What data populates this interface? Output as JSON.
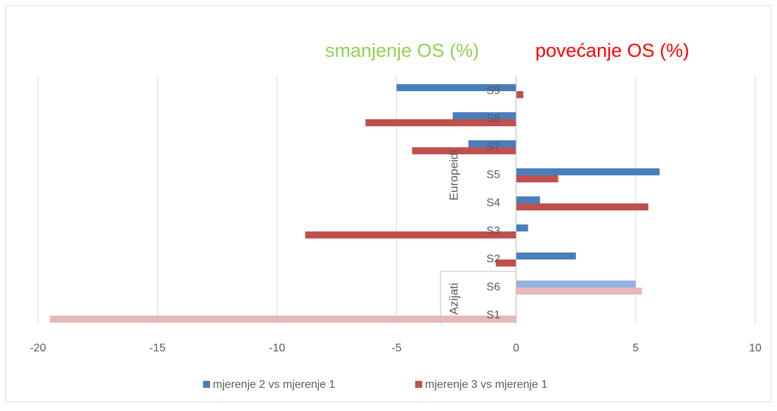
{
  "chart_data": {
    "type": "hbar",
    "annotations": [
      {
        "text": "smanjenje OS  (%)",
        "color": "#92d050"
      },
      {
        "text": "povećanje OS (%)",
        "color": "#ff0000"
      }
    ],
    "categories": [
      "S9",
      "S8",
      "S7",
      "S5",
      "S4",
      "S3",
      "S2",
      "S6",
      "S1"
    ],
    "category_groups": [
      {
        "name": "Europeidi",
        "categories": [
          "S9",
          "S8",
          "S7",
          "S5",
          "S4",
          "S3",
          "S2"
        ]
      },
      {
        "name": "Azijati",
        "categories": [
          "S6",
          "S1"
        ]
      }
    ],
    "series": [
      {
        "name": "mjerenje 2 vs mjerenje 1",
        "color": "#4a7ebb",
        "point_colors": [
          "#4a7ebb",
          "#4a7ebb",
          "#4a7ebb",
          "#4a7ebb",
          "#4a7ebb",
          "#4a7ebb",
          "#4a7ebb",
          "#95b3e0",
          "#95b3e0"
        ],
        "values": [
          -5,
          -2.65,
          -2,
          6,
          1,
          0.5,
          2.5,
          5,
          null
        ]
      },
      {
        "name": "mjerenje 3 vs mjerenje 1",
        "color": "#c0504d",
        "point_colors": [
          "#c0504d",
          "#c0504d",
          "#c0504d",
          "#c0504d",
          "#c0504d",
          "#c0504d",
          "#c0504d",
          "#e6b9b8",
          "#e6b9b8"
        ],
        "values": [
          0.3,
          -6.3,
          -4.35,
          1.76,
          5.53,
          -8.82,
          -0.85,
          5.26,
          -19.5
        ]
      }
    ],
    "xlim": [
      -20,
      10
    ],
    "xticks": [
      -20,
      -15,
      -10,
      -5,
      0,
      5,
      10
    ],
    "grid": true
  }
}
